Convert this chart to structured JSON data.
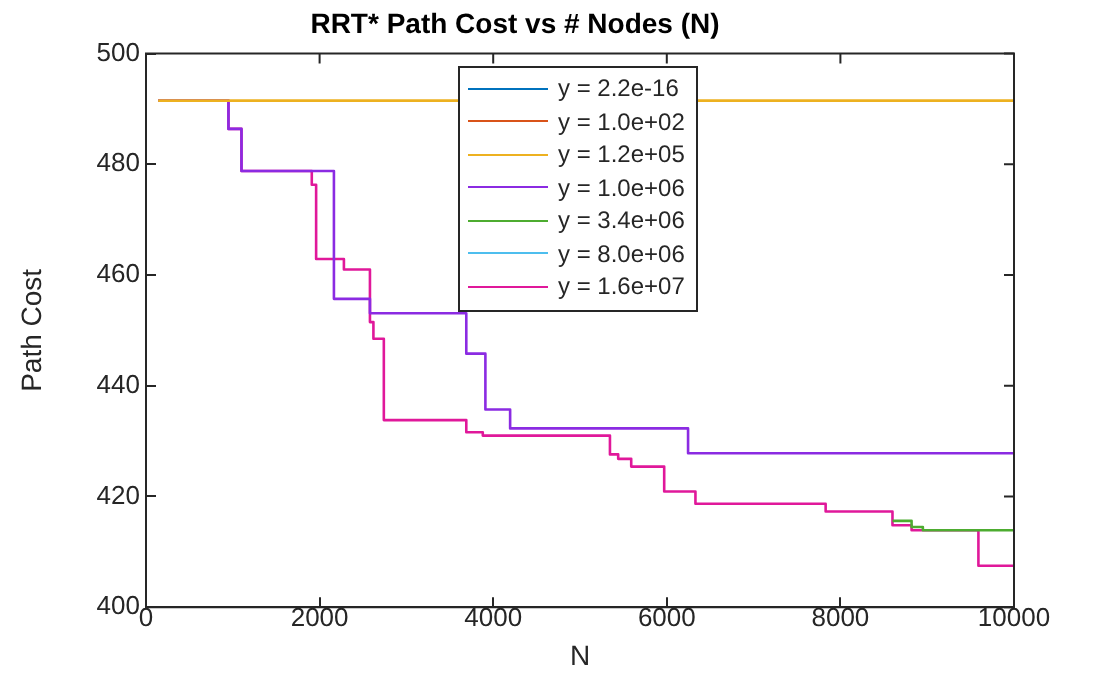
{
  "chart_data": {
    "type": "step",
    "title": "RRT* Path Cost vs # Nodes (N)",
    "xlabel": "N",
    "ylabel": "Path Cost",
    "xlim": [
      0,
      10000
    ],
    "xticks": [
      0,
      2000,
      4000,
      6000,
      8000,
      10000
    ],
    "ylim": [
      400,
      500
    ],
    "yticks": [
      400,
      420,
      440,
      460,
      480,
      500
    ],
    "grid": false,
    "legend": "top",
    "line_style": "solid",
    "marker": "none",
    "series": [
      {
        "name": "y = 2.2e-16",
        "color": "#0072bd"
      },
      {
        "name": "y = 1.0e+02",
        "color": "#d95319"
      },
      {
        "name": "y = 1.2e+05",
        "color": "#edb120",
        "x": [
          140,
          10000
        ],
        "values": [
          491.5,
          491.5
        ]
      },
      {
        "name": "y = 1.0e+06",
        "color": "#8b2be2",
        "x": [
          140,
          950,
          1100,
          2165,
          2580,
          3690,
          3910,
          4195,
          6245,
          10000
        ],
        "values": [
          491.5,
          486.4,
          478.8,
          455.7,
          453.1,
          445.8,
          435.7,
          432.3,
          427.8,
          427.8
        ]
      },
      {
        "name": "y = 3.4e+06",
        "color": "#4dac30",
        "x": [
          8600,
          8820,
          8950,
          10000
        ],
        "values": [
          415.6,
          414.5,
          413.9,
          413.9
        ]
      },
      {
        "name": "y = 8.0e+06",
        "color": "#4dbeee"
      },
      {
        "name": "y = 1.6e+07",
        "color": "#e0189a",
        "x": [
          140,
          950,
          1100,
          1910,
          1960,
          2280,
          2580,
          2620,
          2740,
          3690,
          3880,
          5345,
          5440,
          5590,
          5970,
          6330,
          7830,
          8600,
          8820,
          9590,
          10000
        ],
        "values": [
          491.5,
          486.4,
          478.8,
          476.3,
          462.9,
          461,
          451.5,
          448.5,
          433.8,
          431.6,
          431,
          427.6,
          426.8,
          425.4,
          420.9,
          418.7,
          417.3,
          414.8,
          413.9,
          407.5,
          407.5
        ]
      }
    ]
  }
}
